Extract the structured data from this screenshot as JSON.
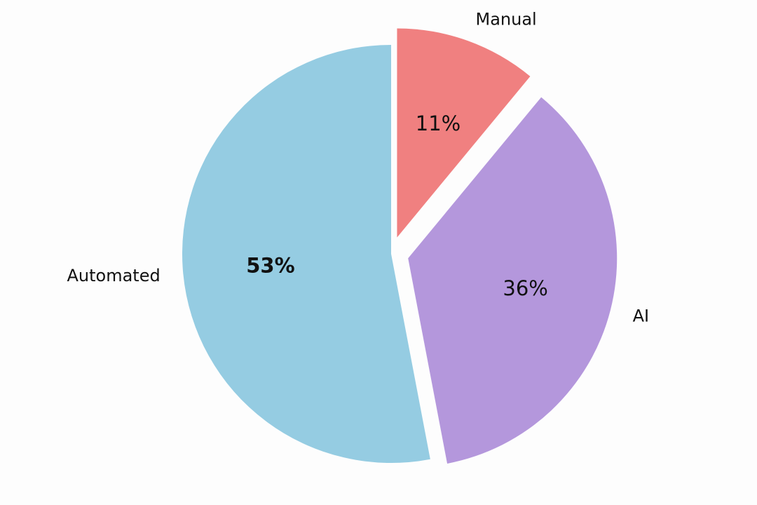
{
  "chart_data": {
    "type": "pie",
    "slices": [
      {
        "label": "Manual",
        "value": 11,
        "value_label": "11%",
        "color": "#f08080",
        "exploded": true,
        "emphasized": false
      },
      {
        "label": "AI",
        "value": 36,
        "value_label": "36%",
        "color": "#b497dc",
        "exploded": true,
        "emphasized": false
      },
      {
        "label": "Automated",
        "value": 53,
        "value_label": "53%",
        "color": "#95cce2",
        "exploded": false,
        "emphasized": true
      }
    ],
    "start": "top",
    "direction": "clockwise",
    "legend": "none"
  }
}
